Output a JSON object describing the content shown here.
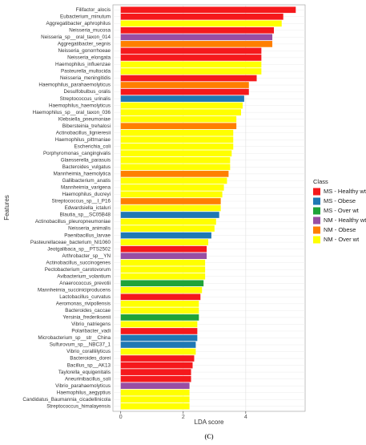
{
  "chart_data": {
    "type": "bar",
    "orientation": "horizontal",
    "x_label": "LDA score",
    "y_label": "Features",
    "legend_title": "Class",
    "caption": "(C)",
    "legend_position": "right",
    "grid": true,
    "xlim": [
      -0.25,
      5.9
    ],
    "xticks": [
      0,
      2,
      4
    ],
    "categories": [
      "Filifactor_alocis",
      "Eubacterium_minutum",
      "Aggregatibacter_aphrophilus",
      "Neisseria_mucosa",
      "Neisseria_sp__oral_taxon_014",
      "Aggregatibacter_segnis",
      "Neisseria_gonorrhoeae",
      "Neisseria_elongata",
      "Haemophilus_influenzae",
      "Pasteurella_multocida",
      "Neisseria_meningitidis",
      "Haemophilus_parahaemolyticus",
      "Desulfobulbus_oralis",
      "Streptococcus_urinalis",
      "Haemophilus_haemolyticus",
      "Haemophilus_sp__oral_taxon_036",
      "Klebsiella_pneumoniae",
      "Bibersteinia_trehalosi",
      "Actinobacillus_lignieresii",
      "Haemophilus_pittmaniae",
      "Escherichia_coli",
      "Porphyromonas_cangingivalis",
      "Glaesserella_parasuis",
      "Bacteroides_vulgatus",
      "Mannheimia_haemolytica",
      "Gallibacterium_anatis",
      "Mannheimia_varigena",
      "Haemophilus_ducreyi",
      "Streptococcus_sp__I_P16",
      "Edwardsiella_ictaluri",
      "Blautia_sp__SC05B48",
      "Actinobacillus_pleuropneumoniae",
      "Neisseria_animalis",
      "Paenibacillus_larvae",
      "Pasteurellaceae_bacterium_NI1060",
      "Jeotgalibaca_sp__PTS2502",
      "Arthrobacter_sp__YN",
      "Actinobacillus_succinogenes",
      "Pectobacterium_carotovorum",
      "Avibacterium_volantium",
      "Anaerococcus_prevotii",
      "Mannheimia_succiniciproducens",
      "Lactobacillus_curvatus",
      "Aeromonas_rivipollensis",
      "Bacteroides_caccae",
      "Yersinia_frederiksenii",
      "Vibrio_natriegens",
      "Polaribacter_vadi",
      "Microbacterium_sp__str__China",
      "Sulfurovum_sp__NBC37_1",
      "Vibrio_coralliilyticus",
      "Bacteroides_dorei",
      "Bacillus_sp__AK13",
      "Taylorella_equigenitalis",
      "Aneurinibacillus_soli",
      "Vibrio_parahaemolyticus",
      "Haemophilus_aegyptius",
      "Candidatus_Baumannia_cicadellinicola",
      "Streptococcus_himalayensis"
    ],
    "series": [
      {
        "name": "MS - Healthy wt",
        "color": "#f5191c",
        "values": [
          5.6,
          5.2,
          null,
          4.9,
          null,
          null,
          4.5,
          4.5,
          null,
          null,
          4.35,
          null,
          4.1,
          null,
          null,
          null,
          null,
          null,
          null,
          null,
          null,
          null,
          null,
          null,
          null,
          null,
          null,
          null,
          null,
          null,
          null,
          null,
          null,
          null,
          null,
          2.75,
          null,
          null,
          null,
          null,
          null,
          null,
          2.55,
          null,
          null,
          null,
          null,
          2.45,
          null,
          null,
          null,
          2.35,
          2.3,
          2.25,
          2.25,
          null,
          null,
          null,
          null
        ]
      },
      {
        "name": "MS - Obese",
        "color": "#1f78b4",
        "values": [
          null,
          null,
          null,
          null,
          null,
          null,
          null,
          null,
          null,
          null,
          null,
          null,
          null,
          3.95,
          null,
          null,
          null,
          null,
          null,
          null,
          null,
          null,
          null,
          null,
          null,
          null,
          null,
          null,
          null,
          null,
          3.15,
          null,
          null,
          2.9,
          null,
          null,
          null,
          null,
          null,
          null,
          null,
          null,
          null,
          null,
          null,
          null,
          null,
          null,
          2.45,
          2.4,
          null,
          null,
          null,
          null,
          null,
          null,
          null,
          null,
          null
        ]
      },
      {
        "name": "MS - Over wt",
        "color": "#1fa339",
        "values": [
          null,
          null,
          null,
          null,
          null,
          null,
          null,
          null,
          null,
          null,
          null,
          null,
          null,
          null,
          null,
          null,
          null,
          null,
          null,
          null,
          null,
          null,
          null,
          null,
          null,
          null,
          null,
          null,
          null,
          null,
          null,
          null,
          null,
          null,
          null,
          null,
          null,
          null,
          null,
          null,
          2.65,
          null,
          null,
          null,
          null,
          2.5,
          null,
          null,
          null,
          null,
          null,
          null,
          null,
          null,
          null,
          null,
          null,
          null,
          null
        ]
      },
      {
        "name": "NM - Healthy wt",
        "color": "#984ea3",
        "values": [
          null,
          null,
          null,
          null,
          4.85,
          null,
          null,
          null,
          null,
          null,
          null,
          null,
          null,
          null,
          null,
          null,
          null,
          null,
          null,
          null,
          null,
          null,
          null,
          null,
          null,
          null,
          null,
          null,
          null,
          null,
          null,
          null,
          null,
          null,
          null,
          null,
          2.75,
          null,
          null,
          null,
          null,
          null,
          null,
          null,
          null,
          null,
          null,
          null,
          null,
          null,
          null,
          null,
          null,
          null,
          null,
          2.2,
          null,
          null,
          null
        ]
      },
      {
        "name": "NM - Obese",
        "color": "#ff7f00",
        "values": [
          null,
          null,
          null,
          null,
          null,
          4.85,
          null,
          null,
          null,
          null,
          null,
          4.1,
          null,
          null,
          null,
          null,
          null,
          3.7,
          null,
          null,
          null,
          null,
          null,
          null,
          3.45,
          null,
          null,
          null,
          3.2,
          null,
          null,
          null,
          null,
          null,
          null,
          null,
          null,
          null,
          null,
          null,
          null,
          null,
          null,
          null,
          null,
          null,
          null,
          null,
          null,
          null,
          null,
          null,
          null,
          null,
          null,
          null,
          null,
          null,
          null
        ]
      },
      {
        "name": "NM - Over wt",
        "color": "#ffff00",
        "values": [
          null,
          null,
          5.15,
          null,
          null,
          null,
          null,
          null,
          4.5,
          4.5,
          null,
          null,
          null,
          null,
          3.9,
          3.85,
          3.7,
          null,
          3.6,
          3.6,
          3.6,
          3.55,
          3.5,
          3.5,
          null,
          3.4,
          3.3,
          3.25,
          null,
          3.2,
          null,
          3.05,
          3.0,
          null,
          2.8,
          null,
          null,
          2.7,
          2.7,
          2.7,
          null,
          2.6,
          null,
          2.5,
          2.5,
          null,
          2.45,
          null,
          null,
          null,
          2.4,
          null,
          null,
          null,
          null,
          null,
          2.2,
          2.2,
          2.2
        ]
      }
    ]
  }
}
